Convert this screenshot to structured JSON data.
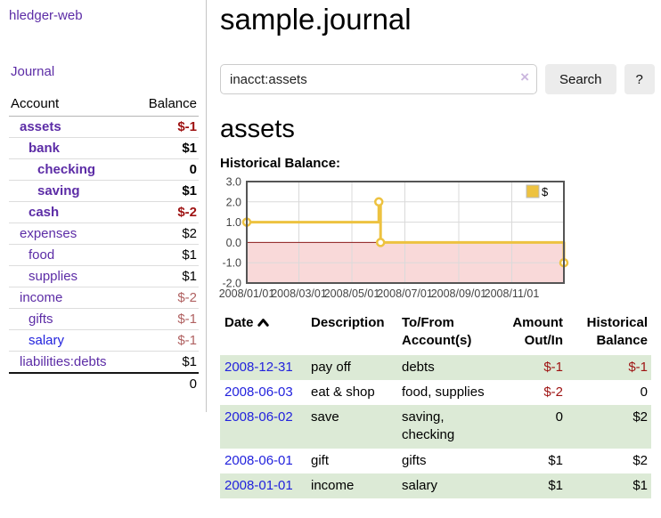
{
  "colors": {
    "link_purple": "#5c2ca6",
    "link_blue": "#2222dd",
    "negative_red": "#9e1212",
    "negative_muted": "#b06161",
    "row_green": "#dcead6",
    "series_yellow": "#edc240"
  },
  "sidebar": {
    "brand": "hledger-web",
    "journal_link": "Journal",
    "accounts": {
      "header_account": "Account",
      "header_balance": "Balance",
      "rows": [
        {
          "name": "assets",
          "balance": "$-1"
        },
        {
          "name": "bank",
          "balance": "$1"
        },
        {
          "name": "checking",
          "balance": "0"
        },
        {
          "name": "saving",
          "balance": "$1"
        },
        {
          "name": "cash",
          "balance": "$-2"
        },
        {
          "name": "expenses",
          "balance": "$2"
        },
        {
          "name": "food",
          "balance": "$1"
        },
        {
          "name": "supplies",
          "balance": "$1"
        },
        {
          "name": "income",
          "balance": "$-2"
        },
        {
          "name": "gifts",
          "balance": "$-1"
        },
        {
          "name": "salary",
          "balance": "$-1"
        },
        {
          "name": "liabilities:debts",
          "balance": "$1"
        }
      ],
      "total": "0"
    }
  },
  "main": {
    "title": "sample.journal",
    "search": {
      "value": "inacct:assets",
      "clear": "×",
      "search_button": "Search",
      "help_button": "?"
    },
    "heading": "assets",
    "chart_label": "Historical Balance:",
    "register": {
      "headers": {
        "date": "Date",
        "description": "Description",
        "tofrom": "To/From\nAccount(s)",
        "amount": "Amount\nOut/In",
        "balance": "Historical\nBalance"
      },
      "rows": [
        {
          "date": "2008-12-31",
          "description": "pay off",
          "tofrom": "debts",
          "amount": "$-1",
          "balance": "$-1"
        },
        {
          "date": "2008-06-03",
          "description": "eat & shop",
          "tofrom": "food, supplies",
          "amount": "$-2",
          "balance": "0"
        },
        {
          "date": "2008-06-02",
          "description": "save",
          "tofrom": "saving,\nchecking",
          "amount": "0",
          "balance": "$2"
        },
        {
          "date": "2008-06-01",
          "description": "gift",
          "tofrom": "gifts",
          "amount": "$1",
          "balance": "$2"
        },
        {
          "date": "2008-01-01",
          "description": "income",
          "tofrom": "salary",
          "amount": "$1",
          "balance": "$1"
        }
      ]
    }
  },
  "chart_data": {
    "type": "line",
    "step": true,
    "title": "Historical Balance",
    "series": [
      {
        "name": "$",
        "color": "#edc240",
        "points": [
          [
            "2008-01-01",
            1
          ],
          [
            "2008-06-01",
            2
          ],
          [
            "2008-06-03",
            0
          ],
          [
            "2008-12-31",
            -1
          ]
        ]
      }
    ],
    "x_range": [
      "2008-01-01",
      "2008-12-31"
    ],
    "x_ticks": [
      "2008/01/01",
      "2008/03/01",
      "2008/05/01",
      "2008/07/01",
      "2008/09/01",
      "2008/11/01"
    ],
    "y_ticks": [
      "3.0",
      "2.0",
      "1.0",
      "0.0",
      "-1.0",
      "-2.0"
    ],
    "ylim": [
      -2,
      3
    ],
    "grid": true,
    "legend_position": "top-right",
    "negative_region_color": "#f9d9d9",
    "zero_line_color": "#8b1a1a",
    "grid_color": "#dadada",
    "border_color": "#555555"
  }
}
